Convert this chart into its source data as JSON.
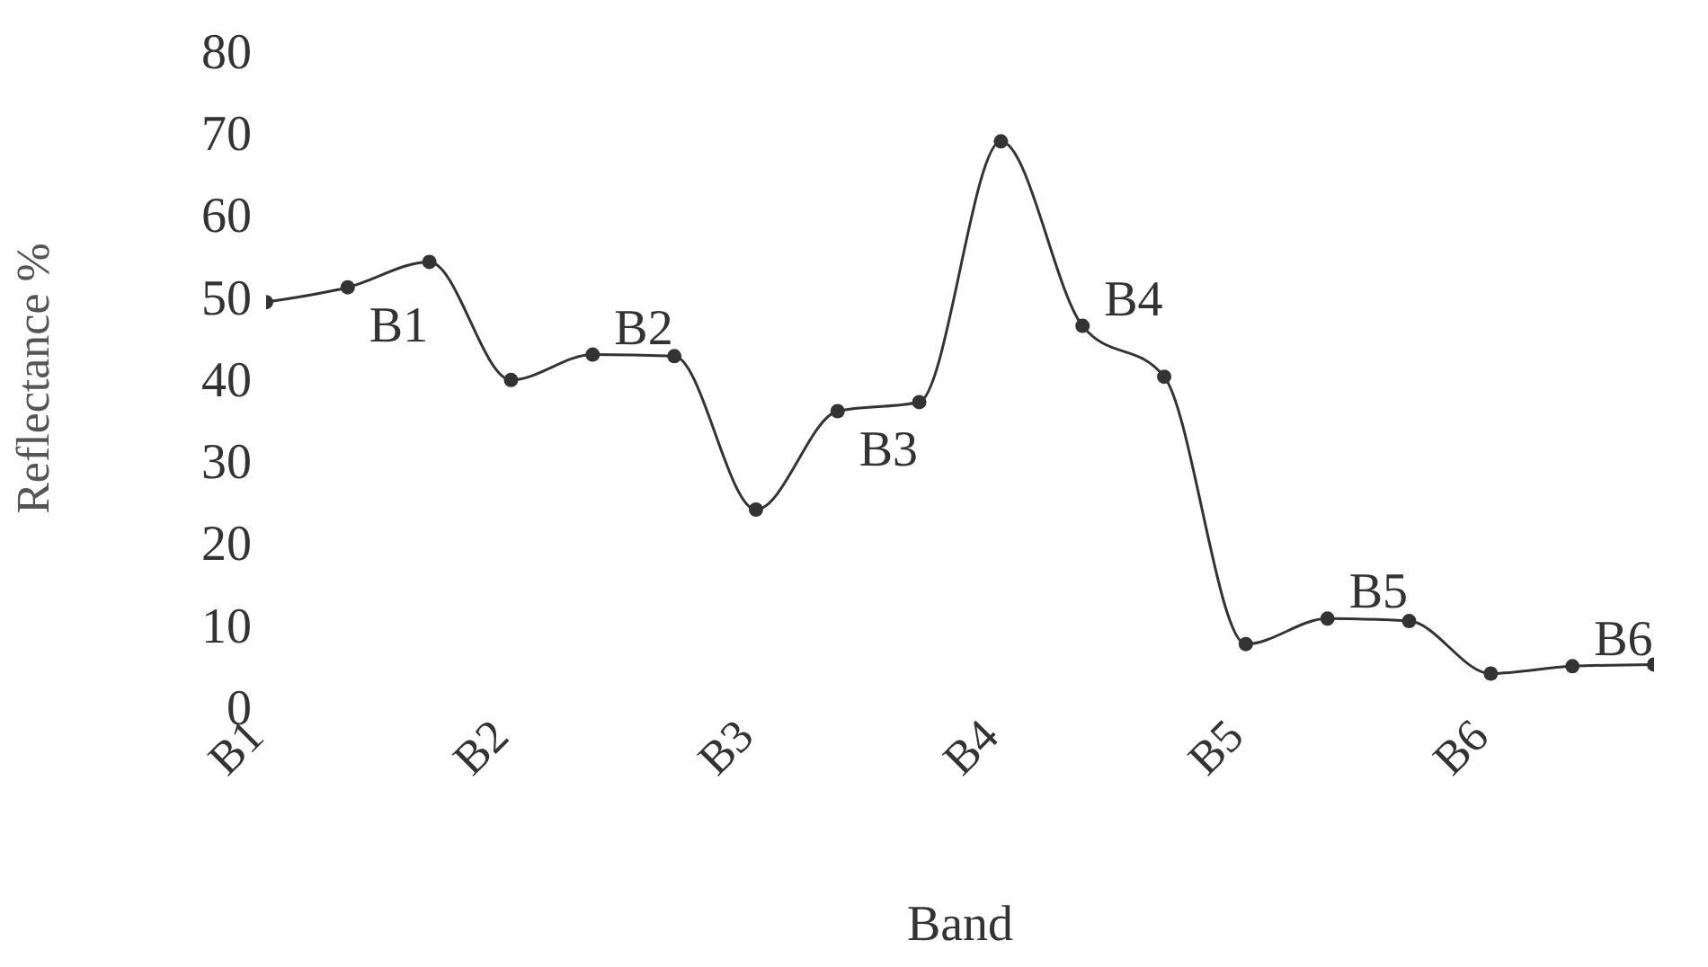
{
  "chart_data": {
    "type": "line",
    "xlabel": "Band",
    "ylabel": "Reflectance %",
    "categories": [
      "B1",
      null,
      null,
      "B2",
      null,
      null,
      "B3",
      null,
      null,
      "B4",
      null,
      null,
      "B5",
      null,
      null,
      "B6",
      null,
      null
    ],
    "series": [
      {
        "color": "#333333",
        "values": [
          49.3,
          51.1,
          54.2,
          39.8,
          42.9,
          42.7,
          24,
          36,
          37.1,
          68.9,
          46.4,
          40.2,
          7.6,
          10.7,
          10.4,
          4,
          4.9,
          5.1
        ]
      }
    ],
    "ylim": [
      0,
      80
    ],
    "yticks": [
      0,
      10,
      20,
      30,
      40,
      50,
      60,
      70,
      80
    ],
    "annotations": [
      "B1",
      "B2",
      "B3",
      "B4",
      "B5",
      "B6"
    ],
    "grid": false,
    "legend": false,
    "marker": "circle",
    "line_style": "solid"
  }
}
